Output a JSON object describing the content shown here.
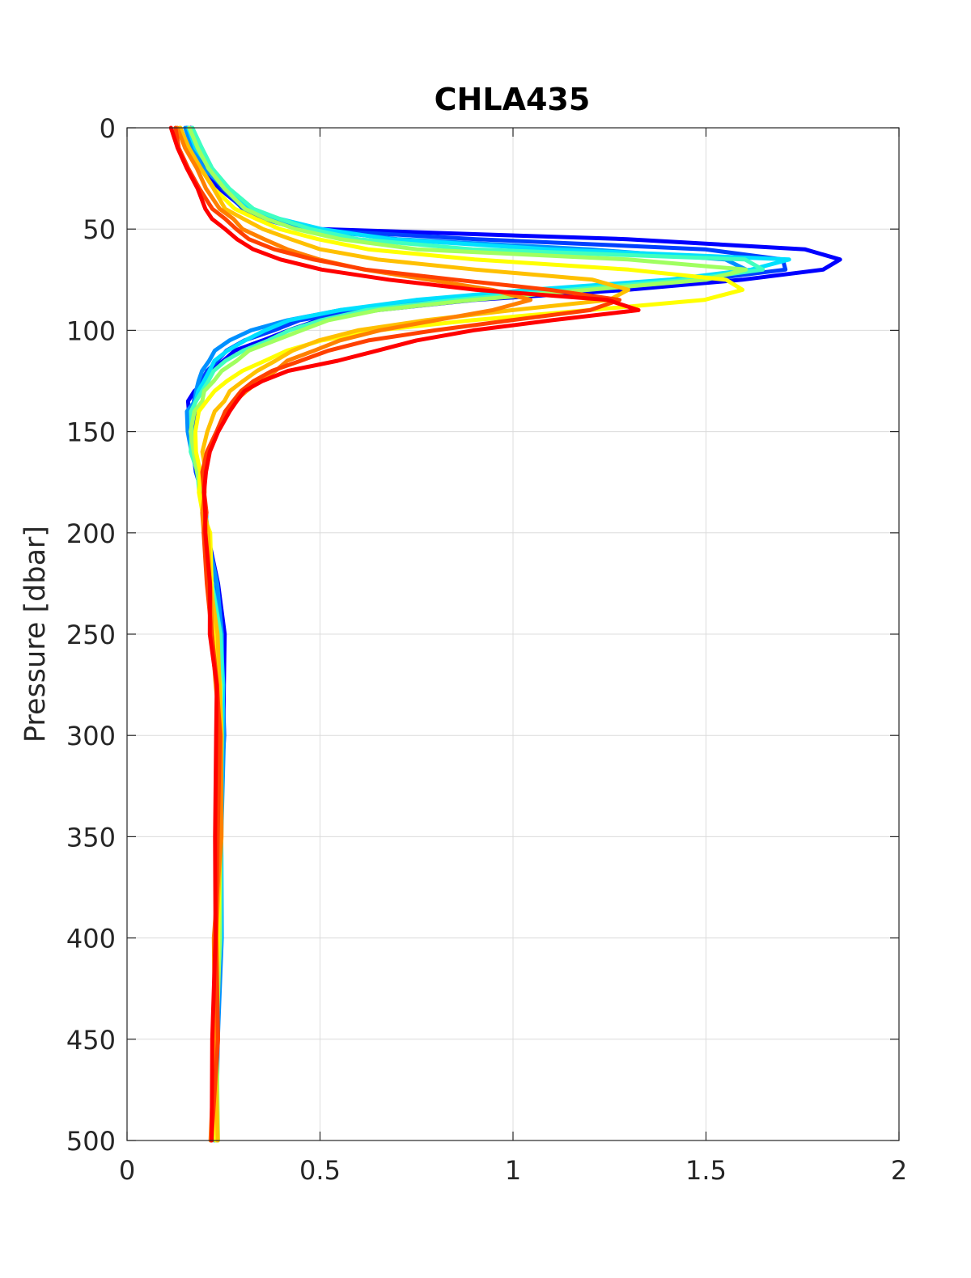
{
  "chart_data": {
    "type": "line",
    "title": "CHLA435",
    "xlabel": "",
    "ylabel": "Pressure [dbar]",
    "xlim": [
      0,
      2
    ],
    "ylim": [
      0,
      500
    ],
    "y_reversed": true,
    "grid": true,
    "legend": "none",
    "x_ticks": [
      "0",
      "0.5",
      "1",
      "1.5",
      "2"
    ],
    "y_ticks": [
      "0",
      "50",
      "100",
      "150",
      "200",
      "250",
      "300",
      "350",
      "400",
      "450",
      "500"
    ],
    "profile_pressure": [
      0,
      10,
      20,
      30,
      40,
      45,
      50,
      55,
      60,
      65,
      70,
      75,
      80,
      85,
      90,
      95,
      100,
      105,
      110,
      115,
      120,
      125,
      130,
      135,
      140,
      150,
      160,
      170,
      180,
      190,
      200,
      225,
      250,
      275,
      300,
      350,
      400,
      450,
      500
    ],
    "series": [
      {
        "color": "#0000ff",
        "values": [
          0.16,
          0.18,
          0.2,
          0.24,
          0.3,
          0.36,
          0.5,
          1.3,
          1.75,
          1.85,
          1.8,
          1.6,
          1.3,
          0.9,
          0.65,
          0.5,
          0.42,
          0.35,
          0.28,
          0.25,
          0.22,
          0.2,
          0.17,
          0.16,
          0.16,
          0.16,
          0.17,
          0.18,
          0.19,
          0.2,
          0.21,
          0.23,
          0.25,
          0.25,
          0.25,
          0.24,
          0.24,
          0.23,
          0.23
        ]
      },
      {
        "color": "#0040ff",
        "values": [
          0.16,
          0.18,
          0.21,
          0.25,
          0.3,
          0.36,
          0.45,
          0.9,
          1.5,
          1.7,
          1.7,
          1.5,
          1.2,
          0.85,
          0.6,
          0.45,
          0.38,
          0.3,
          0.26,
          0.23,
          0.21,
          0.19,
          0.18,
          0.17,
          0.17,
          0.17,
          0.17,
          0.18,
          0.19,
          0.2,
          0.21,
          0.23,
          0.24,
          0.25,
          0.25,
          0.24,
          0.24,
          0.23,
          0.23
        ]
      },
      {
        "color": "#0090ff",
        "values": [
          0.15,
          0.17,
          0.2,
          0.25,
          0.31,
          0.38,
          0.48,
          0.7,
          1.2,
          1.55,
          1.6,
          1.45,
          1.1,
          0.8,
          0.55,
          0.42,
          0.32,
          0.26,
          0.23,
          0.21,
          0.2,
          0.19,
          0.18,
          0.17,
          0.16,
          0.16,
          0.17,
          0.18,
          0.19,
          0.2,
          0.21,
          0.23,
          0.24,
          0.25,
          0.25,
          0.24,
          0.24,
          0.23,
          0.23
        ]
      },
      {
        "color": "#00e0ff",
        "values": [
          0.16,
          0.18,
          0.21,
          0.26,
          0.32,
          0.4,
          0.5,
          0.68,
          1.1,
          1.72,
          1.62,
          1.4,
          1.05,
          0.75,
          0.55,
          0.42,
          0.36,
          0.3,
          0.26,
          0.23,
          0.21,
          0.2,
          0.19,
          0.18,
          0.17,
          0.17,
          0.17,
          0.18,
          0.19,
          0.2,
          0.21,
          0.22,
          0.24,
          0.25,
          0.25,
          0.24,
          0.24,
          0.23,
          0.23
        ]
      },
      {
        "color": "#40ffc0",
        "values": [
          0.17,
          0.19,
          0.22,
          0.26,
          0.33,
          0.4,
          0.48,
          0.6,
          0.9,
          1.6,
          1.65,
          1.45,
          1.15,
          0.85,
          0.62,
          0.5,
          0.42,
          0.36,
          0.3,
          0.26,
          0.23,
          0.21,
          0.2,
          0.18,
          0.17,
          0.17,
          0.17,
          0.18,
          0.19,
          0.2,
          0.21,
          0.22,
          0.24,
          0.24,
          0.24,
          0.24,
          0.24,
          0.23,
          0.23
        ]
      },
      {
        "color": "#a0ff60",
        "values": [
          0.16,
          0.18,
          0.21,
          0.25,
          0.3,
          0.36,
          0.44,
          0.55,
          0.75,
          1.3,
          1.6,
          1.5,
          1.2,
          0.9,
          0.65,
          0.52,
          0.45,
          0.38,
          0.32,
          0.28,
          0.25,
          0.22,
          0.2,
          0.19,
          0.18,
          0.17,
          0.17,
          0.18,
          0.19,
          0.2,
          0.21,
          0.22,
          0.23,
          0.24,
          0.24,
          0.24,
          0.24,
          0.23,
          0.23
        ]
      },
      {
        "color": "#ffff00",
        "values": [
          0.14,
          0.16,
          0.19,
          0.23,
          0.28,
          0.33,
          0.4,
          0.5,
          0.62,
          0.9,
          1.3,
          1.55,
          1.6,
          1.5,
          1.2,
          0.9,
          0.65,
          0.5,
          0.42,
          0.36,
          0.3,
          0.26,
          0.23,
          0.21,
          0.19,
          0.18,
          0.18,
          0.19,
          0.19,
          0.2,
          0.21,
          0.22,
          0.23,
          0.24,
          0.24,
          0.24,
          0.23,
          0.23,
          0.23
        ]
      },
      {
        "color": "#ffc000",
        "values": [
          0.14,
          0.16,
          0.19,
          0.22,
          0.26,
          0.3,
          0.35,
          0.42,
          0.5,
          0.65,
          0.9,
          1.2,
          1.3,
          1.25,
          1.0,
          0.78,
          0.6,
          0.5,
          0.43,
          0.38,
          0.34,
          0.3,
          0.27,
          0.25,
          0.23,
          0.21,
          0.2,
          0.2,
          0.2,
          0.2,
          0.21,
          0.22,
          0.23,
          0.24,
          0.24,
          0.24,
          0.23,
          0.23,
          0.23
        ]
      },
      {
        "color": "#ff8000",
        "values": [
          0.13,
          0.15,
          0.18,
          0.21,
          0.24,
          0.27,
          0.3,
          0.35,
          0.42,
          0.5,
          0.62,
          0.78,
          0.95,
          1.05,
          0.95,
          0.8,
          0.65,
          0.55,
          0.48,
          0.42,
          0.38,
          0.34,
          0.31,
          0.28,
          0.26,
          0.23,
          0.21,
          0.2,
          0.2,
          0.2,
          0.2,
          0.21,
          0.22,
          0.23,
          0.24,
          0.24,
          0.23,
          0.23,
          0.22
        ]
      },
      {
        "color": "#ff4000",
        "values": [
          0.12,
          0.14,
          0.16,
          0.19,
          0.22,
          0.25,
          0.28,
          0.32,
          0.38,
          0.48,
          0.62,
          0.85,
          1.1,
          1.28,
          1.2,
          1.0,
          0.8,
          0.62,
          0.52,
          0.45,
          0.38,
          0.33,
          0.3,
          0.28,
          0.26,
          0.23,
          0.21,
          0.2,
          0.2,
          0.2,
          0.2,
          0.21,
          0.22,
          0.23,
          0.24,
          0.24,
          0.23,
          0.23,
          0.22
        ]
      },
      {
        "color": "#ff0000",
        "values": [
          0.11,
          0.13,
          0.15,
          0.18,
          0.2,
          0.22,
          0.25,
          0.28,
          0.33,
          0.4,
          0.5,
          0.68,
          0.9,
          1.25,
          1.32,
          1.1,
          0.9,
          0.75,
          0.65,
          0.55,
          0.42,
          0.35,
          0.3,
          0.28,
          0.26,
          0.24,
          0.22,
          0.21,
          0.2,
          0.2,
          0.2,
          0.21,
          0.22,
          0.23,
          0.23,
          0.23,
          0.23,
          0.22,
          0.22
        ]
      }
    ]
  }
}
